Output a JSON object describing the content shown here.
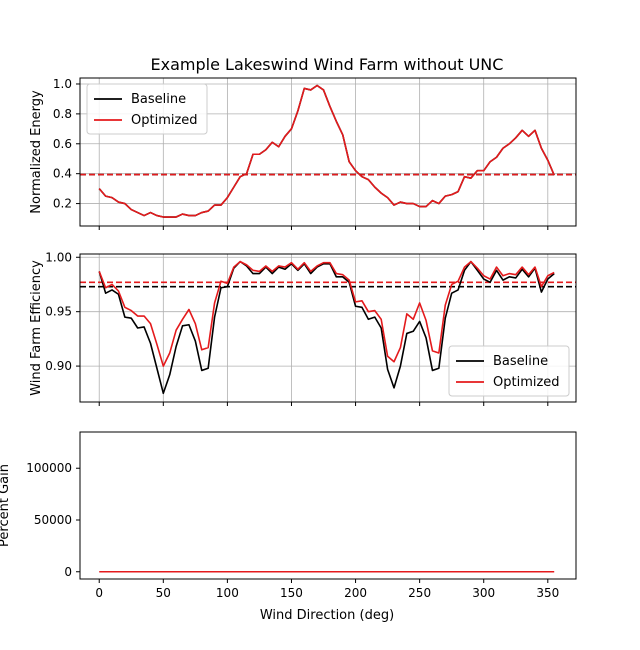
{
  "figure_title": "Example Lakeswind Wind Farm without UNC",
  "x_label": "Wind Direction (deg)",
  "chart_data": [
    {
      "type": "line",
      "ylabel": "Normalized Energy",
      "xlim": [
        -15,
        372
      ],
      "ylim": [
        0.05,
        1.04
      ],
      "xticks": [
        0,
        50,
        100,
        150,
        200,
        250,
        300,
        350
      ],
      "yticks": [
        0.2,
        0.4,
        0.6,
        0.8,
        1.0
      ],
      "ytick_labels": [
        "0.2",
        "0.4",
        "0.6",
        "0.8",
        "1.0"
      ],
      "grid": true,
      "legend": "upper left",
      "x": [
        0,
        5,
        10,
        15,
        20,
        25,
        30,
        35,
        40,
        45,
        50,
        55,
        60,
        65,
        70,
        75,
        80,
        85,
        90,
        95,
        100,
        105,
        110,
        115,
        120,
        125,
        130,
        135,
        140,
        145,
        150,
        155,
        160,
        165,
        170,
        175,
        180,
        185,
        190,
        195,
        200,
        205,
        210,
        215,
        220,
        225,
        230,
        235,
        240,
        245,
        250,
        255,
        260,
        265,
        270,
        275,
        280,
        285,
        290,
        295,
        300,
        305,
        310,
        315,
        320,
        325,
        330,
        335,
        340,
        345,
        350,
        355
      ],
      "series": [
        {
          "name": "Baseline",
          "color": "#000000",
          "values": [
            0.3,
            0.25,
            0.24,
            0.21,
            0.2,
            0.16,
            0.14,
            0.12,
            0.14,
            0.12,
            0.11,
            0.11,
            0.11,
            0.13,
            0.12,
            0.12,
            0.14,
            0.15,
            0.19,
            0.19,
            0.24,
            0.31,
            0.38,
            0.4,
            0.53,
            0.53,
            0.56,
            0.61,
            0.58,
            0.65,
            0.7,
            0.82,
            0.97,
            0.96,
            0.99,
            0.96,
            0.85,
            0.75,
            0.66,
            0.48,
            0.42,
            0.38,
            0.36,
            0.31,
            0.27,
            0.24,
            0.19,
            0.21,
            0.2,
            0.2,
            0.18,
            0.18,
            0.22,
            0.2,
            0.25,
            0.26,
            0.28,
            0.38,
            0.37,
            0.42,
            0.42,
            0.48,
            0.51,
            0.57,
            0.6,
            0.64,
            0.69,
            0.65,
            0.69,
            0.57,
            0.49,
            0.39
          ]
        },
        {
          "name": "Optimized",
          "color": "#e41a1c",
          "values": [
            0.3,
            0.25,
            0.24,
            0.21,
            0.2,
            0.16,
            0.14,
            0.12,
            0.14,
            0.12,
            0.11,
            0.11,
            0.11,
            0.13,
            0.12,
            0.12,
            0.14,
            0.15,
            0.19,
            0.19,
            0.24,
            0.31,
            0.38,
            0.4,
            0.53,
            0.53,
            0.56,
            0.61,
            0.58,
            0.65,
            0.7,
            0.82,
            0.97,
            0.96,
            0.99,
            0.96,
            0.85,
            0.75,
            0.66,
            0.48,
            0.42,
            0.38,
            0.36,
            0.31,
            0.27,
            0.24,
            0.19,
            0.21,
            0.2,
            0.2,
            0.18,
            0.18,
            0.22,
            0.2,
            0.25,
            0.26,
            0.28,
            0.38,
            0.37,
            0.42,
            0.42,
            0.48,
            0.51,
            0.57,
            0.6,
            0.64,
            0.69,
            0.65,
            0.69,
            0.57,
            0.49,
            0.39
          ]
        }
      ],
      "hlines": [
        {
          "y": 0.394,
          "color": "#000000",
          "style": "dashed"
        },
        {
          "y": 0.394,
          "color": "#e41a1c",
          "style": "dashed"
        }
      ]
    },
    {
      "type": "line",
      "ylabel": "Wind Farm Efficiency",
      "xlim": [
        -15,
        372
      ],
      "ylim": [
        0.867,
        1.003
      ],
      "xticks": [
        0,
        50,
        100,
        150,
        200,
        250,
        300,
        350
      ],
      "yticks": [
        0.9,
        0.95,
        1.0
      ],
      "ytick_labels": [
        "0.90",
        "0.95",
        "1.00"
      ],
      "grid": true,
      "legend": "lower right",
      "x": [
        0,
        5,
        10,
        15,
        20,
        25,
        30,
        35,
        40,
        45,
        50,
        55,
        60,
        65,
        70,
        75,
        80,
        85,
        90,
        95,
        100,
        105,
        110,
        115,
        120,
        125,
        130,
        135,
        140,
        145,
        150,
        155,
        160,
        165,
        170,
        175,
        180,
        185,
        190,
        195,
        200,
        205,
        210,
        215,
        220,
        225,
        230,
        235,
        240,
        245,
        250,
        255,
        260,
        265,
        270,
        275,
        280,
        285,
        290,
        295,
        300,
        305,
        310,
        315,
        320,
        325,
        330,
        335,
        340,
        345,
        350,
        355
      ],
      "series": [
        {
          "name": "Baseline",
          "color": "#000000",
          "values": [
            0.987,
            0.967,
            0.97,
            0.966,
            0.945,
            0.944,
            0.935,
            0.936,
            0.921,
            0.898,
            0.875,
            0.892,
            0.918,
            0.937,
            0.938,
            0.923,
            0.896,
            0.898,
            0.945,
            0.972,
            0.973,
            0.99,
            0.996,
            0.992,
            0.985,
            0.985,
            0.991,
            0.985,
            0.991,
            0.989,
            0.994,
            0.988,
            0.994,
            0.985,
            0.991,
            0.994,
            0.994,
            0.982,
            0.982,
            0.977,
            0.955,
            0.954,
            0.943,
            0.945,
            0.935,
            0.897,
            0.88,
            0.9,
            0.93,
            0.932,
            0.941,
            0.926,
            0.896,
            0.898,
            0.944,
            0.967,
            0.97,
            0.988,
            0.996,
            0.988,
            0.98,
            0.977,
            0.988,
            0.979,
            0.982,
            0.981,
            0.989,
            0.982,
            0.99,
            0.968,
            0.98,
            0.985
          ]
        },
        {
          "name": "Optimized",
          "color": "#e41a1c",
          "values": [
            0.987,
            0.972,
            0.975,
            0.969,
            0.954,
            0.951,
            0.946,
            0.946,
            0.939,
            0.92,
            0.9,
            0.912,
            0.933,
            0.943,
            0.952,
            0.939,
            0.915,
            0.917,
            0.958,
            0.978,
            0.976,
            0.991,
            0.996,
            0.993,
            0.988,
            0.987,
            0.992,
            0.987,
            0.992,
            0.991,
            0.995,
            0.989,
            0.995,
            0.987,
            0.992,
            0.995,
            0.995,
            0.985,
            0.984,
            0.979,
            0.959,
            0.96,
            0.95,
            0.951,
            0.943,
            0.909,
            0.904,
            0.917,
            0.948,
            0.943,
            0.958,
            0.942,
            0.914,
            0.912,
            0.956,
            0.975,
            0.978,
            0.991,
            0.996,
            0.99,
            0.983,
            0.98,
            0.991,
            0.983,
            0.985,
            0.984,
            0.991,
            0.984,
            0.991,
            0.973,
            0.983,
            0.986
          ]
        }
      ],
      "hlines": [
        {
          "y": 0.973,
          "color": "#000000",
          "style": "dashed"
        },
        {
          "y": 0.977,
          "color": "#e41a1c",
          "style": "dashed"
        }
      ]
    },
    {
      "type": "line",
      "ylabel": "Percent Gain",
      "xlim": [
        -15,
        372
      ],
      "ylim": [
        -7000,
        135000
      ],
      "xticks": [
        0,
        50,
        100,
        150,
        200,
        250,
        300,
        350
      ],
      "xtick_labels": [
        "0",
        "50",
        "100",
        "150",
        "200",
        "250",
        "300",
        "350"
      ],
      "yticks": [
        0,
        50000,
        100000
      ],
      "ytick_labels": [
        "0",
        "50000",
        "100000"
      ],
      "grid": false,
      "x": [
        0,
        355
      ],
      "series": [
        {
          "name": "",
          "color": "#e41a1c",
          "values": [
            0,
            0
          ]
        }
      ]
    }
  ]
}
